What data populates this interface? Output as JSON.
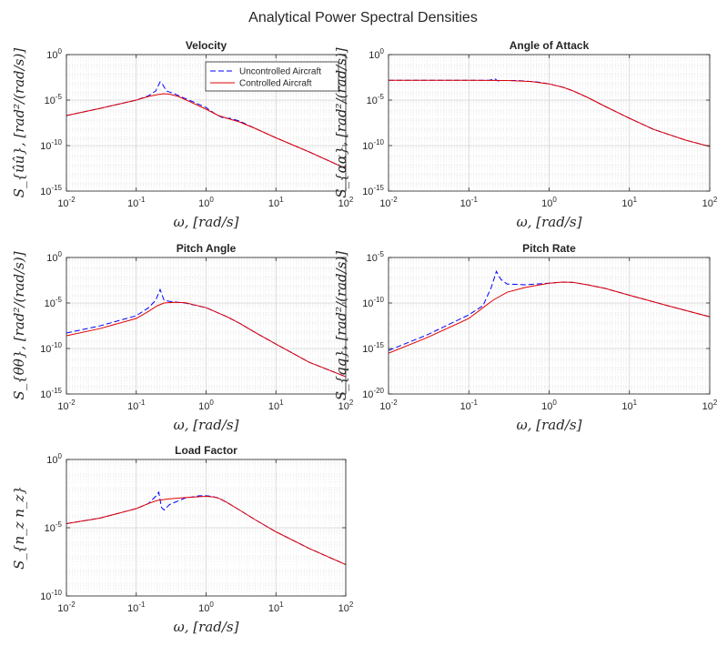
{
  "figure": {
    "title": "Analytical Power Spectral Densities"
  },
  "colors": {
    "uncontrolled": "#0000ff",
    "controlled": "#e00000",
    "axes": "#262626",
    "grid_major": "#d4d4d4",
    "grid_minor": "#ececec"
  },
  "chart_data": [
    {
      "type": "line",
      "title": "Velocity",
      "xlabel": "ω, [rad/s]",
      "ylabel": "S_{ûû}, [rad²/(rad/s)]",
      "xscale": "log",
      "yscale": "log",
      "xlim": [
        0.01,
        100
      ],
      "ylim": [
        1e-15,
        1
      ],
      "xticks": [
        0.01,
        0.1,
        1,
        10,
        100
      ],
      "yticks": [
        1e-15,
        1e-10,
        1e-05,
        1
      ],
      "grid": true,
      "legend": {
        "location": "top-right",
        "entries": [
          "Uncontrolled Aircraft",
          "Controlled Aircraft"
        ]
      },
      "series": [
        {
          "name": "Uncontrolled Aircraft",
          "style": "dashed",
          "color": "blue",
          "x": [
            0.01,
            0.03,
            0.1,
            0.15,
            0.19,
            0.22,
            0.24,
            0.27,
            0.35,
            0.5,
            0.7,
            1,
            1.4,
            1.8,
            2.2,
            3,
            5,
            10,
            30,
            100
          ],
          "y": [
            2e-07,
            1.2e-06,
            1e-05,
            3e-05,
            0.0001,
            0.001,
            0.0005,
            0.0001,
            5e-05,
            1.5e-05,
            5e-06,
            1.5e-06,
            2.5e-07,
            1e-07,
            1e-07,
            5e-08,
            8e-09,
            7e-10,
            2e-11,
            3e-13
          ]
        },
        {
          "name": "Controlled Aircraft",
          "style": "solid",
          "color": "red",
          "x": [
            0.01,
            0.03,
            0.1,
            0.15,
            0.2,
            0.25,
            0.3,
            0.4,
            0.6,
            1,
            1.5,
            2,
            3,
            5,
            10,
            30,
            100
          ],
          "y": [
            2e-07,
            1.2e-06,
            1e-05,
            2.5e-05,
            4e-05,
            5e-05,
            4.5e-05,
            2.5e-05,
            6e-06,
            1e-06,
            2e-07,
            1e-07,
            4e-08,
            8e-09,
            7e-10,
            2e-11,
            3e-13
          ]
        }
      ]
    },
    {
      "type": "line",
      "title": "Angle of Attack",
      "xlabel": "ω, [rad/s]",
      "ylabel": "S_{αα}, [rad²/(rad/s)]",
      "xscale": "log",
      "yscale": "log",
      "xlim": [
        0.01,
        100
      ],
      "ylim": [
        1e-15,
        1
      ],
      "xticks": [
        0.01,
        0.1,
        1,
        10,
        100
      ],
      "yticks": [
        1e-15,
        1e-10,
        1e-05,
        1
      ],
      "grid": true,
      "series": [
        {
          "name": "Uncontrolled Aircraft",
          "style": "dashed",
          "color": "blue",
          "x": [
            0.01,
            0.1,
            0.18,
            0.21,
            0.23,
            0.26,
            0.4,
            0.7,
            1,
            1.5,
            2,
            3,
            5,
            10,
            20,
            50,
            100
          ],
          "y": [
            0.0015,
            0.0015,
            0.0015,
            0.0022,
            0.0013,
            0.0014,
            0.0014,
            0.001,
            0.0006,
            0.00025,
            0.0001,
            2e-05,
            2e-06,
            1e-07,
            6e-09,
            4e-10,
            8e-11
          ]
        },
        {
          "name": "Controlled Aircraft",
          "style": "solid",
          "color": "red",
          "x": [
            0.01,
            0.1,
            0.3,
            0.6,
            1,
            1.5,
            2,
            3,
            5,
            10,
            20,
            50,
            100
          ],
          "y": [
            0.0015,
            0.0015,
            0.0014,
            0.0011,
            0.0006,
            0.00025,
            0.0001,
            2e-05,
            2e-06,
            1e-07,
            6e-09,
            4e-10,
            8e-11
          ]
        }
      ]
    },
    {
      "type": "line",
      "title": "Pitch Angle",
      "xlabel": "ω, [rad/s]",
      "ylabel": "S_{θθ}, [rad²/(rad/s)]",
      "xscale": "log",
      "yscale": "log",
      "xlim": [
        0.01,
        100
      ],
      "ylim": [
        1e-15,
        1
      ],
      "xticks": [
        0.01,
        0.1,
        1,
        10,
        100
      ],
      "yticks": [
        1e-15,
        1e-10,
        1e-05,
        1
      ],
      "grid": true,
      "series": [
        {
          "name": "Uncontrolled Aircraft",
          "style": "dashed",
          "color": "blue",
          "x": [
            0.01,
            0.03,
            0.1,
            0.15,
            0.19,
            0.22,
            0.25,
            0.3,
            0.5,
            1,
            2,
            3,
            5,
            10,
            30,
            100
          ],
          "y": [
            5e-09,
            3e-08,
            4e-07,
            3e-06,
            2e-05,
            0.0003,
            2e-05,
            1.5e-05,
            1e-05,
            3e-06,
            3e-07,
            6e-08,
            6e-09,
            3e-10,
            3e-12,
            8e-14
          ]
        },
        {
          "name": "Controlled Aircraft",
          "style": "solid",
          "color": "red",
          "x": [
            0.01,
            0.03,
            0.1,
            0.15,
            0.2,
            0.25,
            0.35,
            0.5,
            1,
            2,
            3,
            5,
            10,
            30,
            100
          ],
          "y": [
            2.5e-09,
            1.5e-08,
            2e-07,
            1.2e-06,
            5e-06,
            1e-05,
            1.2e-05,
            1.1e-05,
            3e-06,
            3e-07,
            6e-08,
            6e-09,
            3e-10,
            3e-12,
            8e-14
          ]
        }
      ]
    },
    {
      "type": "line",
      "title": "Pitch Rate",
      "xlabel": "ω, [rad/s]",
      "ylabel": "S_{qq}, [rad²/(rad/s)]",
      "xscale": "log",
      "yscale": "log",
      "xlim": [
        0.01,
        100
      ],
      "ylim": [
        1e-20,
        1e-05
      ],
      "xticks": [
        0.01,
        0.1,
        1,
        10,
        100
      ],
      "yticks": [
        1e-20,
        1e-15,
        1e-10,
        1e-05
      ],
      "grid": true,
      "series": [
        {
          "name": "Uncontrolled Aircraft",
          "style": "dashed",
          "color": "blue",
          "x": [
            0.01,
            0.03,
            0.1,
            0.15,
            0.19,
            0.22,
            0.25,
            0.3,
            0.5,
            1,
            1.5,
            2,
            3,
            5,
            10,
            30,
            100
          ],
          "y": [
            6e-16,
            3e-14,
            5e-12,
            5e-11,
            5e-09,
            3e-07,
            4e-08,
            1.2e-08,
            1e-08,
            1.5e-08,
            2e-08,
            1.8e-08,
            1e-08,
            4e-09,
            7e-10,
            5e-11,
            3e-12
          ]
        },
        {
          "name": "Controlled Aircraft",
          "style": "solid",
          "color": "red",
          "x": [
            0.01,
            0.03,
            0.1,
            0.15,
            0.2,
            0.3,
            0.5,
            1,
            1.5,
            2,
            3,
            5,
            10,
            30,
            100
          ],
          "y": [
            3e-16,
            1.5e-14,
            2e-12,
            3e-11,
            2e-10,
            1.5e-09,
            5e-09,
            1.5e-08,
            2e-08,
            1.8e-08,
            1e-08,
            4e-09,
            7e-10,
            5e-11,
            3e-12
          ]
        }
      ]
    },
    {
      "type": "line",
      "title": "Load Factor",
      "xlabel": "ω, [rad/s]",
      "ylabel": "S_{n_z n_z}",
      "xscale": "log",
      "yscale": "log",
      "xlim": [
        0.01,
        100
      ],
      "ylim": [
        1e-10,
        1
      ],
      "xticks": [
        0.01,
        0.1,
        1,
        10,
        100
      ],
      "yticks": [
        1e-10,
        1e-05,
        1
      ],
      "grid": true,
      "series": [
        {
          "name": "Uncontrolled Aircraft",
          "style": "dashed",
          "color": "blue",
          "x": [
            0.01,
            0.03,
            0.1,
            0.15,
            0.19,
            0.21,
            0.23,
            0.25,
            0.3,
            0.5,
            0.8,
            1,
            1.2,
            1.5,
            2,
            3,
            5,
            10,
            30,
            100
          ],
          "y": [
            2e-05,
            5e-05,
            0.00025,
            0.0006,
            0.002,
            0.004,
            0.0003,
            0.0002,
            0.0005,
            0.0015,
            0.0022,
            0.0022,
            0.002,
            0.0015,
            0.0007,
            0.0002,
            4e-05,
            5e-06,
            3e-07,
            2e-08
          ]
        },
        {
          "name": "Controlled Aircraft",
          "style": "solid",
          "color": "red",
          "x": [
            0.01,
            0.03,
            0.1,
            0.15,
            0.2,
            0.3,
            0.5,
            1,
            1.3,
            1.6,
            2,
            3,
            5,
            10,
            30,
            100
          ],
          "y": [
            2e-05,
            5e-05,
            0.00025,
            0.0006,
            0.001,
            0.0013,
            0.0016,
            0.002,
            0.0018,
            0.0013,
            0.0007,
            0.0002,
            4e-05,
            5e-06,
            3e-07,
            2e-08
          ]
        }
      ]
    }
  ]
}
